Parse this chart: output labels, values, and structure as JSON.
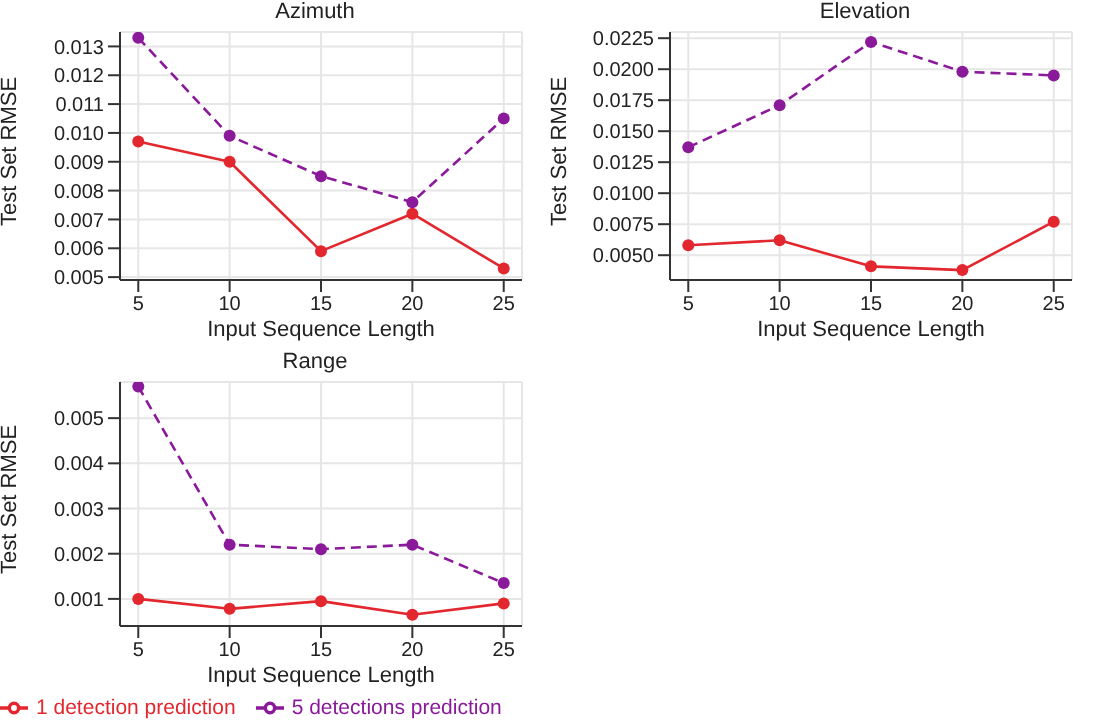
{
  "chart_data": [
    {
      "type": "line",
      "title": "Azimuth",
      "xlabel": "Input Sequence Length",
      "ylabel": "Test Set RMSE",
      "x": [
        5,
        10,
        15,
        20,
        25
      ],
      "xlim": [
        4,
        26
      ],
      "xticks": [
        5,
        10,
        15,
        20,
        25
      ],
      "ylim": [
        0.0049,
        0.0135
      ],
      "yticks": [
        0.005,
        0.006,
        0.007,
        0.008,
        0.009,
        {
          "value": 0.01,
          "label": "0.010"
        },
        0.011,
        0.012,
        0.013
      ],
      "grid": true,
      "marker": "circle",
      "legend": false,
      "series": [
        {
          "color": "#e3272e",
          "line_style": "solid",
          "values": [
            0.0097,
            0.009,
            0.0059,
            0.0072,
            0.0053
          ]
        },
        {
          "color": "#8a1a9a",
          "line_style": "dashed",
          "values": [
            0.0133,
            0.0099,
            0.0085,
            0.0076,
            0.0105
          ]
        }
      ]
    },
    {
      "type": "line",
      "title": "Elevation",
      "xlabel": "Input Sequence Length",
      "ylabel": "Test Set RMSE",
      "x": [
        5,
        10,
        15,
        20,
        25
      ],
      "xlim": [
        4,
        26
      ],
      "xticks": [
        5,
        10,
        15,
        20,
        25
      ],
      "ylim": [
        0.003,
        0.023
      ],
      "yticks": [
        {
          "value": 0.005,
          "label": "0.0050"
        },
        0.0075,
        {
          "value": 0.01,
          "label": "0.0100"
        },
        0.0125,
        {
          "value": 0.015,
          "label": "0.0150"
        },
        0.0175,
        {
          "value": 0.02,
          "label": "0.0200"
        },
        0.0225
      ],
      "grid": true,
      "marker": "circle",
      "legend": false,
      "series": [
        {
          "color": "#e3272e",
          "line_style": "solid",
          "values": [
            0.0058,
            0.0062,
            0.0041,
            0.0038,
            0.0077
          ]
        },
        {
          "color": "#8a1a9a",
          "line_style": "dashed",
          "values": [
            0.0137,
            0.0171,
            0.0222,
            0.0198,
            0.0195
          ]
        }
      ]
    },
    {
      "type": "line",
      "title": "Range",
      "xlabel": "Input Sequence Length",
      "ylabel": "Test Set RMSE",
      "x": [
        5,
        10,
        15,
        20,
        25
      ],
      "xlim": [
        4,
        26
      ],
      "xticks": [
        5,
        10,
        15,
        20,
        25
      ],
      "ylim": [
        0.0004,
        0.0058
      ],
      "yticks": [
        0.001,
        0.002,
        0.003,
        0.004,
        0.005
      ],
      "grid": true,
      "marker": "circle",
      "legend": "bottom left",
      "series": [
        {
          "name": "1 detection prediction",
          "color": "#e3272e",
          "line_style": "solid",
          "values": [
            0.001,
            0.00078,
            0.00095,
            0.00065,
            0.0009
          ]
        },
        {
          "name": "5 detections prediction",
          "color": "#8a1a9a",
          "line_style": "dashed",
          "values": [
            0.0057,
            0.0022,
            0.0021,
            0.0022,
            0.00135
          ]
        }
      ]
    }
  ]
}
